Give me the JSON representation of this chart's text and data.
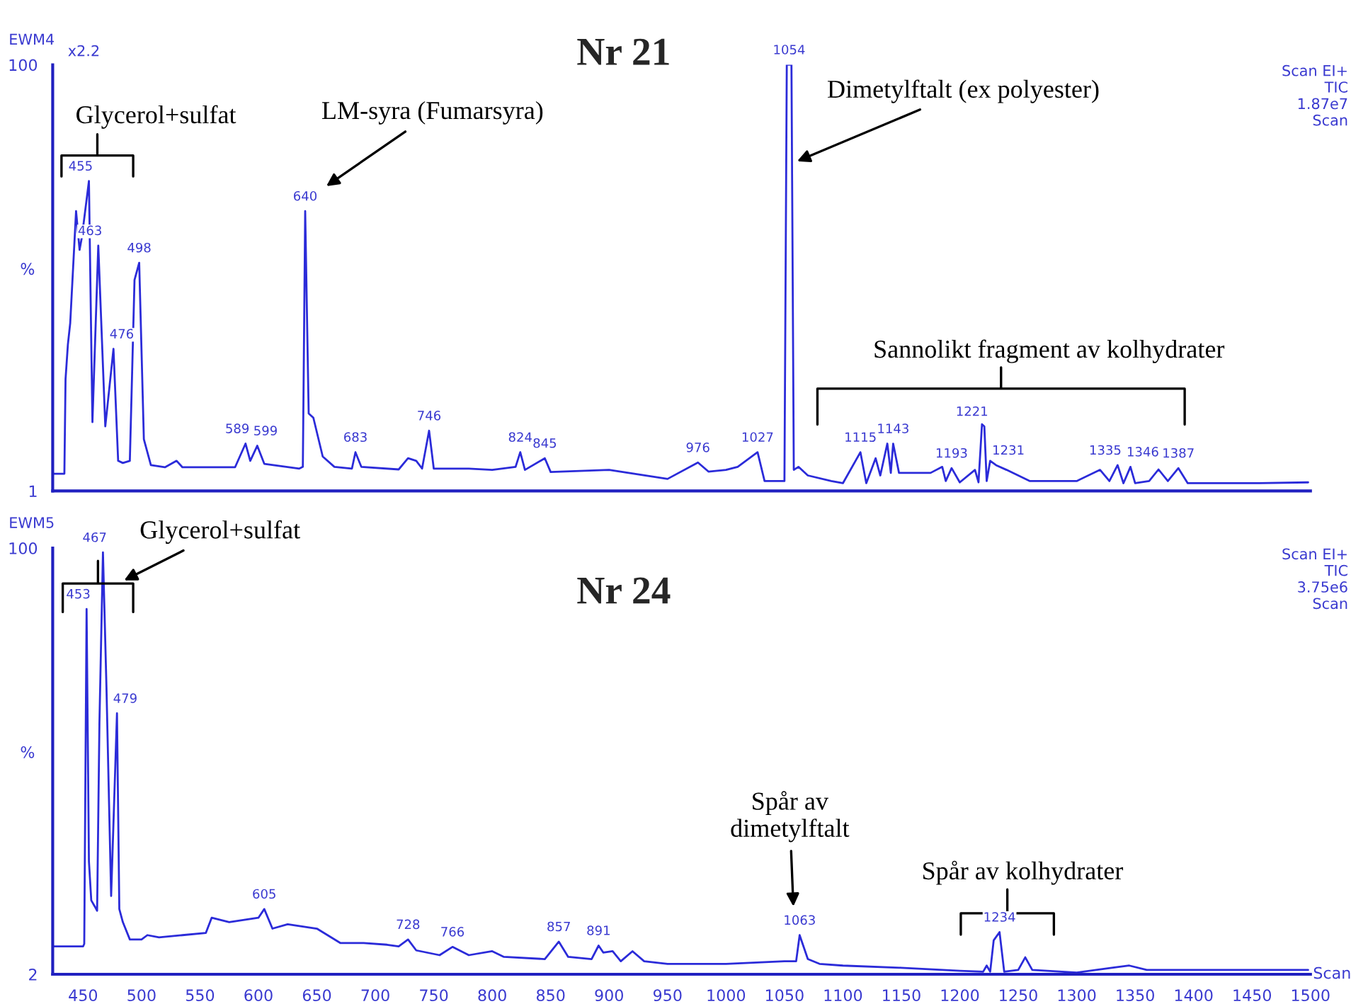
{
  "chart_data": [
    {
      "type": "line",
      "title": "Nr 21",
      "ylabel": "%",
      "xlim": [
        424,
        1500
      ],
      "ylim": [
        1,
        100
      ],
      "yticks": [
        1,
        100
      ],
      "tick_labels": "y",
      "grid": false,
      "legend": false,
      "marker": "none",
      "line_style": "solid",
      "series": [
        {
          "color": "#2b2bd9",
          "x": [
            424,
            434,
            435,
            437,
            439,
            444,
            447,
            449,
            455,
            458,
            463,
            469,
            476,
            480,
            484,
            490,
            494,
            498,
            502,
            508,
            520,
            530,
            535,
            580,
            589,
            593,
            599,
            605,
            635,
            638,
            640,
            643,
            647,
            655,
            665,
            680,
            683,
            688,
            720,
            728,
            735,
            740,
            746,
            750,
            780,
            800,
            820,
            824,
            828,
            845,
            850,
            900,
            950,
            976,
            985,
            1000,
            1010,
            1027,
            1033,
            1050,
            1052,
            1056,
            1058,
            1062,
            1070,
            1090,
            1100,
            1115,
            1120,
            1128,
            1132,
            1138,
            1141,
            1143,
            1148,
            1160,
            1175,
            1185,
            1188,
            1193,
            1200,
            1213,
            1216,
            1219,
            1221,
            1223,
            1226,
            1231,
            1240,
            1260,
            1300,
            1320,
            1328,
            1335,
            1340,
            1346,
            1350,
            1362,
            1370,
            1378,
            1387,
            1395,
            1450,
            1498
          ],
          "values": [
            5,
            5,
            27,
            35,
            40,
            66,
            57,
            60,
            73,
            17,
            58,
            16,
            34,
            8,
            7.5,
            8,
            50,
            54,
            13,
            7,
            6.5,
            8,
            6.5,
            6.5,
            12,
            8,
            11.5,
            7.3,
            6.2,
            6.6,
            66,
            19,
            18,
            9,
            6.6,
            6.2,
            10,
            6.6,
            6,
            8.6,
            8,
            6.2,
            15,
            6.2,
            6.2,
            5.9,
            6.6,
            10,
            5.9,
            8.6,
            5.4,
            5.9,
            3.8,
            7.6,
            5.5,
            5.9,
            6.6,
            10,
            3.3,
            3.3,
            100,
            100,
            5.9,
            6.6,
            4.6,
            3.3,
            2.8,
            10,
            2.8,
            8.6,
            4.6,
            12,
            5.2,
            12,
            5.2,
            5.2,
            5.2,
            6.6,
            3.3,
            6.3,
            3,
            5.9,
            3,
            16.5,
            16,
            3.3,
            8,
            7,
            5.9,
            3.3,
            3.3,
            5.9,
            3.3,
            7,
            2.8,
            6.6,
            2.8,
            3.3,
            6,
            3.3,
            6.3,
            2.8,
            2.8,
            3
          ]
        }
      ],
      "annotations": [
        "EWM4",
        "x2.2",
        "Scan EI+\nTIC\n1.87e7\nScan",
        {
          "text": "455",
          "x": 455,
          "y": 73
        },
        {
          "text": "463",
          "x": 463,
          "y": 58
        },
        {
          "text": "476",
          "x": 476,
          "y": 34
        },
        {
          "text": "498",
          "x": 498,
          "y": 54
        },
        {
          "text": "589",
          "x": 589,
          "y": 12
        },
        {
          "text": "599",
          "x": 599,
          "y": 11.5
        },
        {
          "text": "640",
          "x": 640,
          "y": 66
        },
        {
          "text": "683",
          "x": 683,
          "y": 10
        },
        {
          "text": "746",
          "x": 746,
          "y": 15
        },
        {
          "text": "824",
          "x": 824,
          "y": 10
        },
        {
          "text": "845",
          "x": 845,
          "y": 8.6
        },
        {
          "text": "976",
          "x": 976,
          "y": 7.6
        },
        {
          "text": "1027",
          "x": 1027,
          "y": 10
        },
        {
          "text": "1054",
          "x": 1054,
          "y": 100
        },
        {
          "text": "1115",
          "x": 1115,
          "y": 10
        },
        {
          "text": "1143",
          "x": 1143,
          "y": 12
        },
        {
          "text": "1193",
          "x": 1193,
          "y": 6.3
        },
        {
          "text": "1221",
          "x": 1221,
          "y": 16
        },
        {
          "text": "1231",
          "x": 1231,
          "y": 7
        },
        {
          "text": "1335",
          "x": 1335,
          "y": 7
        },
        {
          "text": "1346",
          "x": 1346,
          "y": 6.6
        },
        {
          "text": "1387",
          "x": 1387,
          "y": 6.3
        },
        "Glycerol+sulfat",
        "LM-syra (Fumarsyra)",
        "Dimetylftalt (ex polyester)",
        "Sannolikt fragment av kolhydrater"
      ]
    },
    {
      "type": "line",
      "title": "Nr 24",
      "ylabel": "%",
      "xlabel": "Scan",
      "xlim": [
        424,
        1500
      ],
      "ylim": [
        2,
        100
      ],
      "yticks": [
        2,
        100
      ],
      "xticks": [
        450,
        500,
        550,
        600,
        650,
        700,
        750,
        800,
        850,
        900,
        950,
        1000,
        1050,
        1100,
        1150,
        1200,
        1250,
        1300,
        1350,
        1400,
        1450,
        1500
      ],
      "grid": false,
      "legend": false,
      "marker": "none",
      "line_style": "solid",
      "series": [
        {
          "color": "#2b2bd9",
          "x": [
            424,
            450,
            451,
            453,
            455,
            457,
            460,
            462,
            464,
            467,
            470,
            474,
            479,
            481,
            484,
            490,
            500,
            505,
            515,
            535,
            555,
            560,
            575,
            600,
            605,
            612,
            625,
            650,
            670,
            690,
            710,
            720,
            728,
            735,
            755,
            766,
            780,
            800,
            810,
            845,
            857,
            865,
            885,
            891,
            895,
            903,
            910,
            920,
            930,
            950,
            1000,
            1050,
            1060,
            1063,
            1070,
            1080,
            1100,
            1150,
            1200,
            1220,
            1223,
            1226,
            1229,
            1234,
            1238,
            1250,
            1256,
            1262,
            1300,
            1330,
            1345,
            1360,
            1400,
            1450,
            1498
          ],
          "values": [
            8.4,
            8.4,
            9,
            86,
            28,
            19,
            17.6,
            16.6,
            60,
            99,
            68,
            20,
            62,
            17,
            14,
            10,
            10,
            11,
            10.5,
            11,
            11.5,
            15,
            14,
            15,
            17,
            12.5,
            13.5,
            12.5,
            9.2,
            9.2,
            8.8,
            8.4,
            10,
            7.5,
            6.4,
            8.3,
            6.4,
            7.3,
            6,
            5.5,
            9.5,
            6,
            5.5,
            8.6,
            7,
            7.3,
            5,
            7.3,
            5,
            4.4,
            4.4,
            5,
            5,
            11,
            5.5,
            4.4,
            4,
            3.5,
            2.8,
            2.6,
            4,
            2.6,
            9.8,
            11.7,
            2.6,
            3,
            5.9,
            3,
            2.4,
            3.5,
            4,
            3,
            3,
            3,
            3
          ]
        }
      ],
      "annotations": [
        "EWM5",
        "Scan EI+\nTIC\n3.75e6\nScan",
        {
          "text": "453",
          "x": 453,
          "y": 86
        },
        {
          "text": "467",
          "x": 467,
          "y": 99
        },
        {
          "text": "479",
          "x": 479,
          "y": 62
        },
        {
          "text": "605",
          "x": 605,
          "y": 17
        },
        {
          "text": "728",
          "x": 728,
          "y": 10
        },
        {
          "text": "766",
          "x": 766,
          "y": 8.3
        },
        {
          "text": "857",
          "x": 857,
          "y": 9.5
        },
        {
          "text": "891",
          "x": 891,
          "y": 8.6
        },
        {
          "text": "1063",
          "x": 1063,
          "y": 11
        },
        {
          "text": "1234",
          "x": 1234,
          "y": 11.7
        },
        "Glycerol+sulfat",
        "Spår av\ndimetylftalt",
        "Spår av kolhydrater"
      ]
    }
  ]
}
